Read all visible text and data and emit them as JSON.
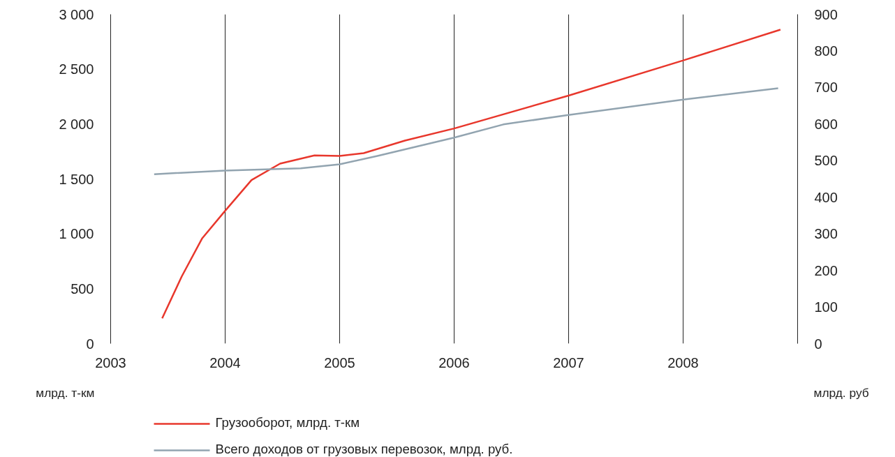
{
  "chart_data": {
    "type": "line",
    "xlabel": null,
    "ylabel": "млрд. т-км",
    "y2label": "млрд. руб",
    "xlim": [
      2003,
      2009
    ],
    "xticks": [
      2003,
      2004,
      2005,
      2006,
      2007,
      2008
    ],
    "ylim": [
      0,
      3000
    ],
    "yticks": [
      0,
      500,
      {
        "value": 1000,
        "label": "1 000"
      },
      {
        "value": 1500,
        "label": "1 500"
      },
      {
        "value": 2000,
        "label": "2 000"
      },
      {
        "value": 2500,
        "label": "2 500"
      },
      {
        "value": 3000,
        "label": "3 000"
      }
    ],
    "y2lim": [
      0,
      900
    ],
    "y2ticks": [
      0,
      100,
      200,
      300,
      400,
      500,
      600,
      700,
      800,
      900
    ],
    "grid": "x",
    "legend": "bottom",
    "marker": "none",
    "line_style": "solid",
    "series": [
      {
        "name": "Грузооборот, млрд. т-км",
        "color": "#e8372c",
        "x": [
          2003.45,
          2003.62,
          2003.8,
          2004.0,
          2004.23,
          2004.48,
          2004.78,
          2005.0,
          2005.21,
          2005.57,
          2006.0,
          2007.0,
          2008.0,
          2008.85
        ],
        "values": [
          230,
          610,
          960,
          1210,
          1490,
          1640,
          1715,
          1710,
          1735,
          1850,
          1960,
          2260,
          2580,
          2860
        ]
      },
      {
        "name": "Всего доходов от грузовых перевозок, млрд. руб.",
        "color": "#92a4b0",
        "axis": "y2",
        "x": [
          2003.38,
          2004.0,
          2004.66,
          2005.0,
          2005.33,
          2006.0,
          2006.43,
          2007.0,
          2008.0,
          2008.83
        ],
        "values": [
          463,
          473,
          479,
          490,
          513,
          563,
          599,
          625,
          667,
          698
        ]
      }
    ]
  }
}
